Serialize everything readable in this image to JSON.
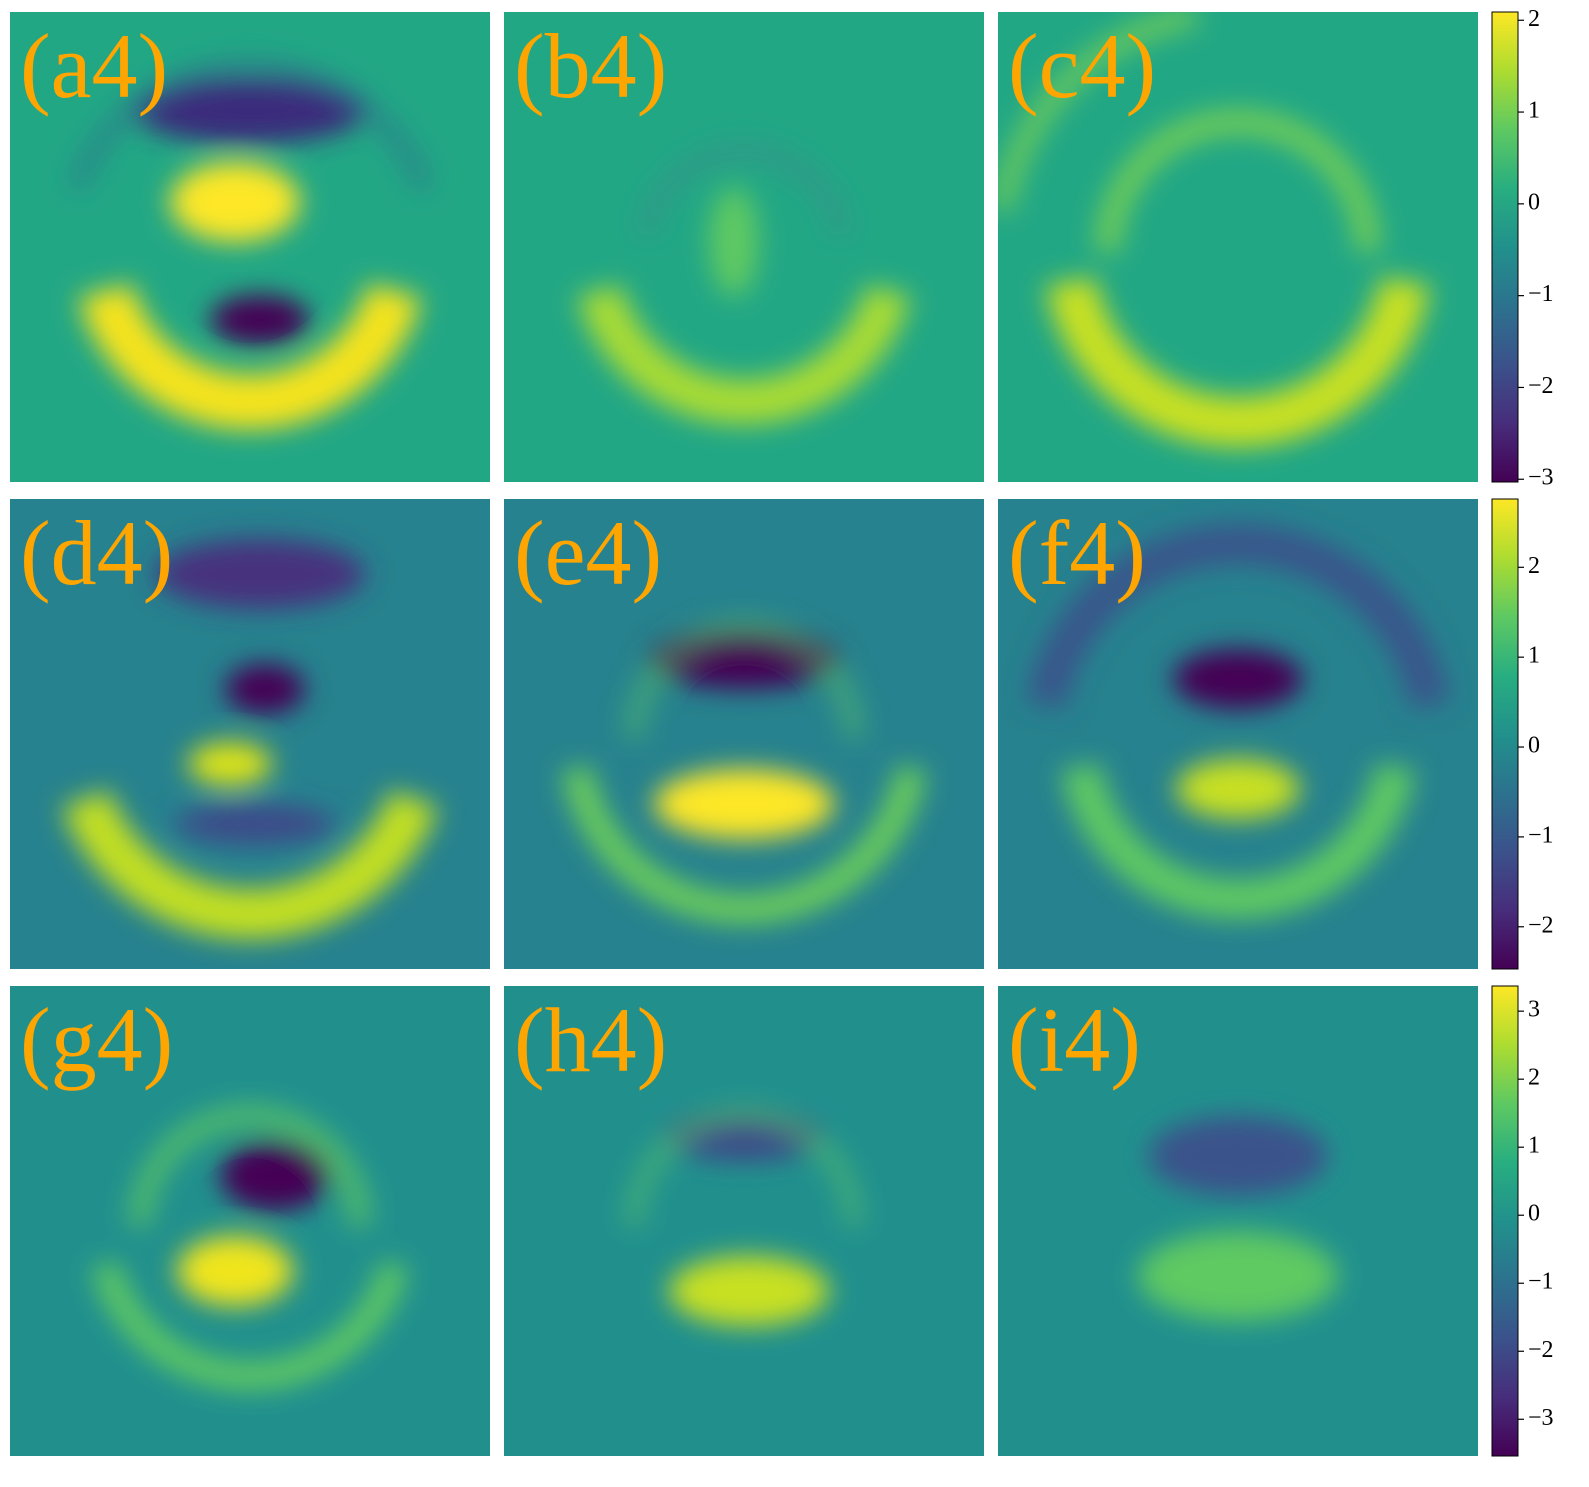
{
  "chart_data": [
    {
      "type": "heatmap",
      "colormap": "viridis",
      "label_color": "#ffa500",
      "panels": [
        "(a4)",
        "(b4)",
        "(c4)"
      ],
      "ylim": [
        -3.03,
        2.09
      ],
      "yticks": [
        {
          "value": -3,
          "label": "−3"
        },
        {
          "value": -2,
          "label": "−2"
        },
        {
          "value": -1,
          "label": "−1"
        },
        0,
        1,
        2
      ]
    },
    {
      "type": "heatmap",
      "colormap": "viridis",
      "label_color": "#ffa500",
      "panels": [
        "(d4)",
        "(e4)",
        "(f4)"
      ],
      "ylim": [
        -2.47,
        2.76
      ],
      "yticks": [
        {
          "value": -2,
          "label": "−2"
        },
        {
          "value": -1,
          "label": "−1"
        },
        0,
        1,
        2
      ]
    },
    {
      "type": "heatmap",
      "colormap": "viridis",
      "label_color": "#ffa500",
      "panels": [
        "(g4)",
        "(h4)",
        "(i4)"
      ],
      "ylim": [
        -3.54,
        3.37
      ],
      "yticks": [
        {
          "value": -3,
          "label": "−3"
        },
        {
          "value": -2,
          "label": "−2"
        },
        {
          "value": -1,
          "label": "−1"
        },
        0,
        1,
        2,
        3
      ]
    }
  ]
}
